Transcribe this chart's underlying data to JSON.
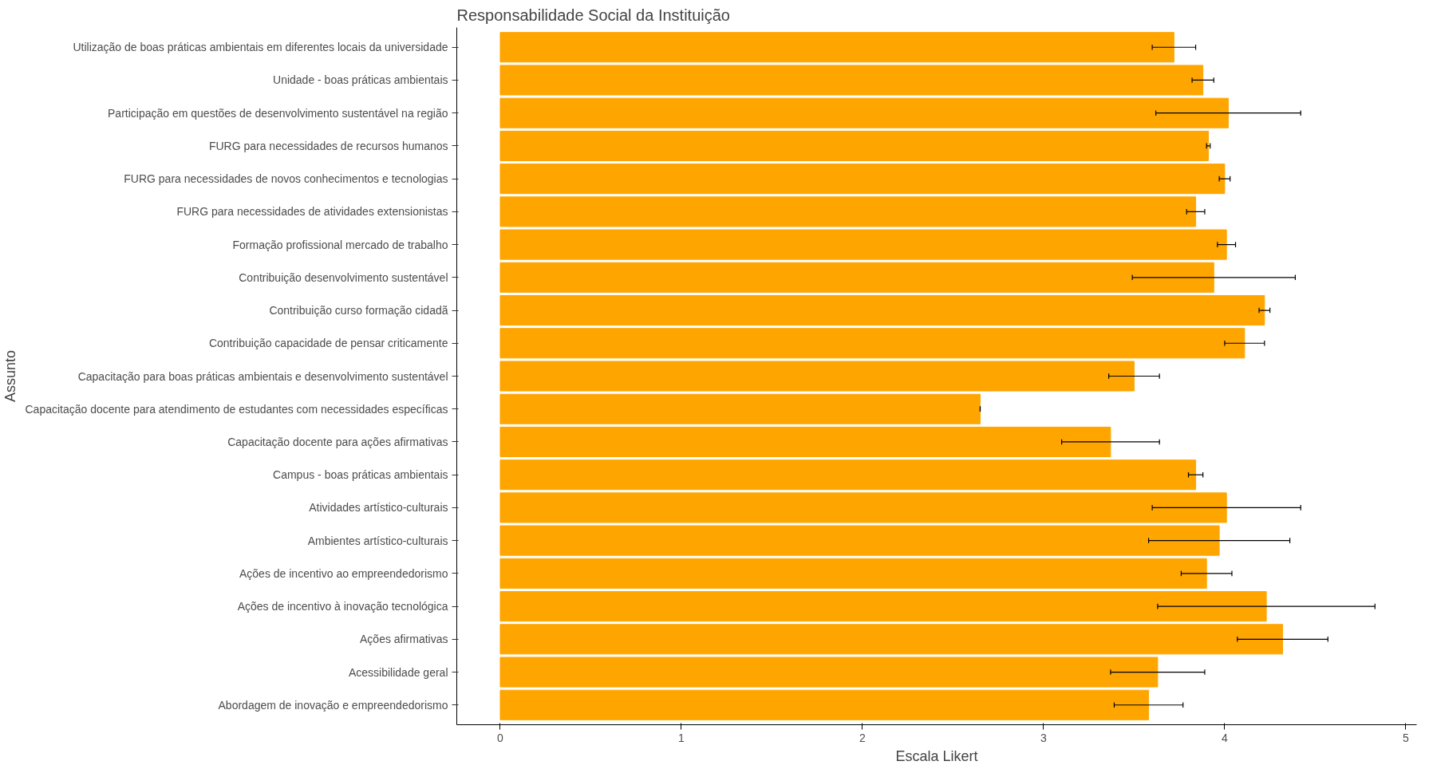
{
  "chart_data": {
    "type": "bar",
    "orientation": "horizontal",
    "title": "Responsabilidade Social da Instituição",
    "xlabel": "Escala Likert",
    "ylabel": "Assunto",
    "categories": [
      "Utilização de boas práticas ambientais em diferentes locais da universidade",
      "Unidade - boas práticas ambientais",
      "Participação em questões de desenvolvimento sustentável na região",
      "FURG para necessidades de recursos humanos",
      "FURG para necessidades de novos conhecimentos e tecnologias",
      "FURG para necessidades de atividades extensionistas",
      "Formação profissional mercado de trabalho",
      "Contribuição desenvolvimento sustentável",
      "Contribuição curso formação cidadã",
      "Contribuição capacidade de pensar criticamente",
      "Capacitação para boas práticas ambientais e desenvolvimento sustentável",
      "Capacitação docente para atendimento de estudantes com necessidades específicas",
      "Capacitação docente para ações afirmativas",
      "Campus - boas práticas ambientais",
      "Atividades artístico-culturais",
      "Ambientes artístico-culturais",
      "Ações de incentivo ao empreendedorismo",
      "Ações de incentivo à inovação tecnológica",
      "Ações afirmativas",
      "Acessibilidade geral",
      "Abordagem de inovação e empreendedorismo"
    ],
    "values": [
      3.72,
      3.88,
      4.02,
      3.91,
      4.0,
      3.84,
      4.01,
      3.94,
      4.22,
      4.11,
      3.5,
      2.65,
      3.37,
      3.84,
      4.01,
      3.97,
      3.9,
      4.23,
      4.32,
      3.63,
      3.58
    ],
    "errors": [
      [
        3.6,
        3.84
      ],
      [
        3.82,
        3.94
      ],
      [
        3.62,
        4.42
      ],
      [
        3.9,
        3.92
      ],
      [
        3.97,
        4.03
      ],
      [
        3.79,
        3.89
      ],
      [
        3.96,
        4.06
      ],
      [
        3.49,
        4.39
      ],
      [
        4.19,
        4.25
      ],
      [
        4.0,
        4.22
      ],
      [
        3.36,
        3.64
      ],
      [
        2.65,
        2.65
      ],
      [
        3.1,
        3.64
      ],
      [
        3.8,
        3.88
      ],
      [
        3.6,
        4.42
      ],
      [
        3.58,
        4.36
      ],
      [
        3.76,
        4.04
      ],
      [
        3.63,
        4.83
      ],
      [
        4.07,
        4.57
      ],
      [
        3.37,
        3.89
      ],
      [
        3.39,
        3.77
      ]
    ],
    "color": "#ffa500",
    "xlim": [
      -0.24,
      5.06
    ],
    "xticks": [
      0,
      1,
      2,
      3,
      4,
      5
    ],
    "grid": false
  }
}
